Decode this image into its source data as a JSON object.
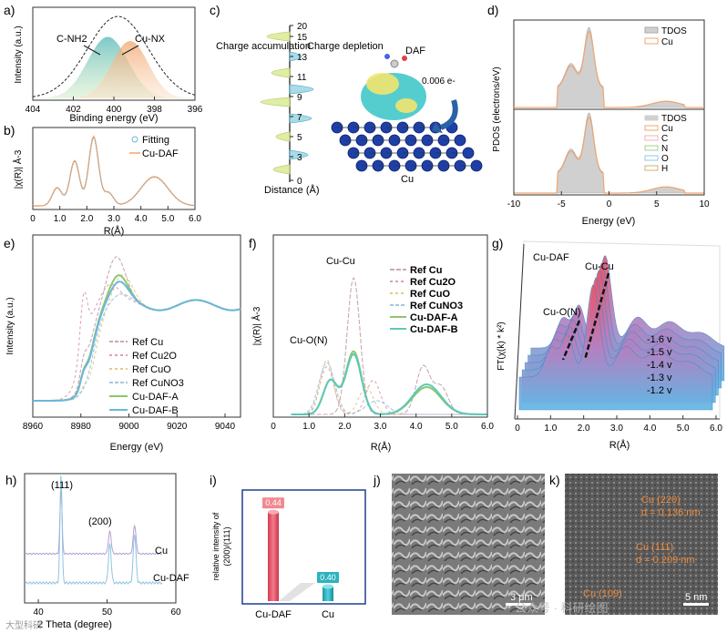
{
  "colors": {
    "teal": "#7ec8d9",
    "orange": "#f2a56d",
    "green": "#8dc76b",
    "blue": "#6db5dd",
    "pink": "#e68a9a",
    "grey": "#bcbcbc",
    "red": "#e8536a",
    "cyan": "#2bb3c0",
    "navy": "#1f3fa8"
  },
  "chart_data": [
    {
      "panel": "a)",
      "type": "area",
      "xlabel": "Binding energy (eV)",
      "ylabel": "Intensity (a.u.)",
      "xlim": [
        404,
        396
      ],
      "xticks": [
        "404",
        "402",
        "400",
        "398",
        "396"
      ],
      "annotations": [
        "C-NH2",
        "Cu-NX"
      ],
      "series": [
        {
          "name": "C-NH2",
          "center": 400.3,
          "height": 0.75,
          "width": 1.0
        },
        {
          "name": "Cu-NX",
          "center": 399.2,
          "height": 0.7,
          "width": 0.9
        },
        {
          "name": "envelope",
          "center": 399.8,
          "height": 1.0,
          "width": 1.5
        }
      ]
    },
    {
      "panel": "b)",
      "type": "line",
      "xlabel": "R(Å)",
      "ylabel": "|χ(R)| Å-3",
      "xlim": [
        0,
        6
      ],
      "xticks": [
        "0",
        "1.0",
        "2.0",
        "3.0",
        "4.0",
        "5.0",
        "6.0"
      ],
      "legend": [
        "Fitting",
        "Cu-DAF"
      ],
      "peaks": [
        {
          "x": 0.9,
          "y": 0.25
        },
        {
          "x": 1.55,
          "y": 0.62
        },
        {
          "x": 2.25,
          "y": 0.95
        },
        {
          "x": 2.8,
          "y": 0.18
        },
        {
          "x": 4.5,
          "y": 0.4
        }
      ]
    },
    {
      "panel": "c)",
      "type": "diagram",
      "labels": [
        "Charge accumulation",
        "Charge depletion",
        "DAF",
        "0.006 e-",
        "Cu",
        "Distance (Å)"
      ],
      "yticks": [
        "0",
        "3",
        "5",
        "7",
        "9",
        "11",
        "13",
        "15",
        "20"
      ]
    },
    {
      "panel": "d)",
      "type": "area",
      "xlabel": "Energy (eV)",
      "ylabel": "PDOS (electrons/eV)",
      "xlim": [
        -10,
        10
      ],
      "xticks": [
        "-10",
        "-5",
        "0",
        "5",
        "10"
      ],
      "top_legend": [
        "TDOS",
        "Cu"
      ],
      "bottom_legend": [
        "TDOS",
        "Cu",
        "C",
        "N",
        "O",
        "H"
      ],
      "peak_energy": -2
    },
    {
      "panel": "e)",
      "type": "line",
      "xlabel": "Energy (eV)",
      "ylabel": "Intensity (a.u.)",
      "xlim": [
        8960,
        9050
      ],
      "xticks": [
        "8960",
        "8980",
        "9000",
        "9020",
        "9040"
      ],
      "legend": [
        "Ref Cu",
        "Ref Cu2O",
        "Ref CuO",
        "Ref CuNO3",
        "Cu-DAF-A",
        "Cu-DAF-B"
      ],
      "edge_energy": 8984,
      "white_line_energy": 8996
    },
    {
      "panel": "f)",
      "type": "line",
      "xlabel": "R(Å)",
      "ylabel": "|χ(R)| Å-3",
      "xlim": [
        0,
        6
      ],
      "xticks": [
        "0",
        "1.0",
        "2.0",
        "3.0",
        "4.0",
        "5.0",
        "6.0"
      ],
      "legend": [
        "Ref Cu",
        "Ref Cu2O",
        "Ref CuO",
        "Ref CuNO3",
        "Cu-DAF-A",
        "Cu-DAF-B"
      ],
      "annotations": [
        "Cu-Cu",
        "Cu-O(N)"
      ]
    },
    {
      "panel": "g)",
      "type": "area",
      "xlabel": "R(Å)",
      "ylabel": "FT(χ(k) * k²)",
      "xticks": [
        "0",
        "1.0",
        "2.0",
        "3.0",
        "4.0",
        "5.0",
        "6.0"
      ],
      "title": "Cu-DAF",
      "annotations": [
        "Cu-Cu",
        "Cu-O(N)"
      ],
      "potentials": [
        "-1.6 v",
        "-1.5 v",
        "-1.4 v",
        "-1.3 v",
        "-1.2 v"
      ]
    },
    {
      "panel": "h)",
      "type": "line",
      "xlabel": "2 Theta (degree)",
      "xticks": [
        "40",
        "50",
        "60"
      ],
      "xlim": [
        38,
        60
      ],
      "peaks": [
        "(111)",
        "(200)"
      ],
      "series": [
        "Cu",
        "Cu-DAF"
      ]
    },
    {
      "panel": "i)",
      "type": "bar",
      "ylabel": "relative intensity of (200)/(111)",
      "categories": [
        "Cu-DAF",
        "Cu"
      ],
      "values": [
        0.44,
        0.4
      ],
      "value_labels": [
        "0.44",
        "0.40"
      ]
    }
  ],
  "images": {
    "j": {
      "panel": "j)",
      "scale": "3 μm"
    },
    "k": {
      "panel": "k)",
      "scale": "5 nm",
      "ann1": "Cu (220)",
      "ann1d": "d = 0.136 nm",
      "ann2": "Cu (111)",
      "ann2d": "d = 0.209 nm",
      "ann3": "Cu (109)",
      "watermark": "公众号 · 科研绘图"
    }
  },
  "labels": {
    "h_watermark": "大型科研",
    "c_arrow_value": "0.006 e-"
  }
}
